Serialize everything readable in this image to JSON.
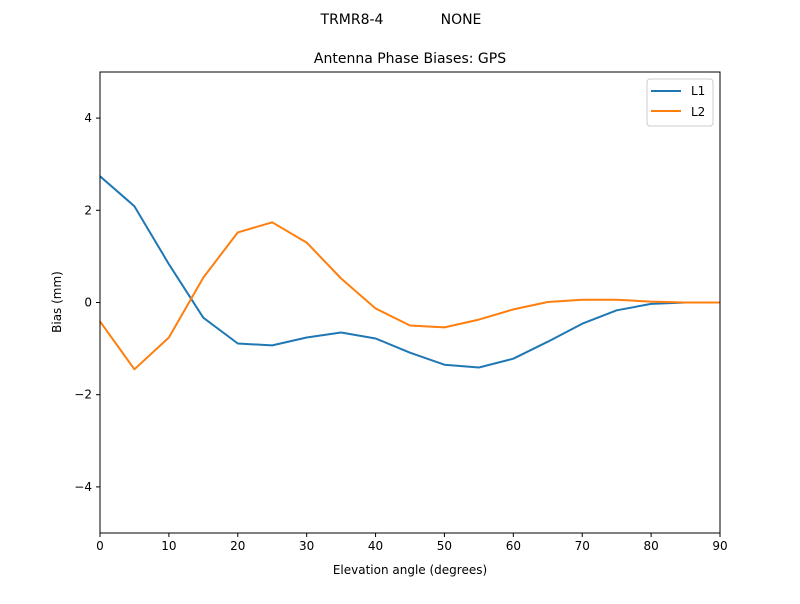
{
  "figure": {
    "suptitle_left": "TRMR8-4",
    "suptitle_right": "NONE"
  },
  "chart_data": {
    "type": "line",
    "title": "Antenna Phase Biases: GPS",
    "suptitle": "TRMR8-4          NONE",
    "xlabel": "Elevation angle (degrees)",
    "ylabel": "Bias (mm)",
    "xlim": [
      0,
      90
    ],
    "ylim": [
      -5,
      5
    ],
    "xticks": [
      0,
      10,
      20,
      30,
      40,
      50,
      60,
      70,
      80,
      90
    ],
    "yticks": [
      -4,
      -2,
      0,
      2,
      4
    ],
    "ytick_labels": [
      "−4",
      "−2",
      "0",
      "2",
      "4"
    ],
    "grid": false,
    "legend_position": "upper right",
    "x": [
      0,
      5,
      10,
      15,
      20,
      25,
      30,
      35,
      40,
      45,
      50,
      55,
      60,
      65,
      70,
      75,
      80,
      85,
      90
    ],
    "series": [
      {
        "name": "L1",
        "color": "#1f77b4",
        "values": [
          2.74,
          2.09,
          0.83,
          -0.33,
          -0.89,
          -0.93,
          -0.76,
          -0.65,
          -0.78,
          -1.09,
          -1.35,
          -1.41,
          -1.22,
          -0.85,
          -0.46,
          -0.17,
          -0.03,
          0.0,
          0.0
        ]
      },
      {
        "name": "L2",
        "color": "#ff7f0e",
        "values": [
          -0.41,
          -1.45,
          -0.76,
          0.54,
          1.52,
          1.74,
          1.3,
          0.52,
          -0.13,
          -0.5,
          -0.54,
          -0.37,
          -0.15,
          0.01,
          0.06,
          0.06,
          0.02,
          0.0,
          0.0
        ]
      }
    ]
  }
}
